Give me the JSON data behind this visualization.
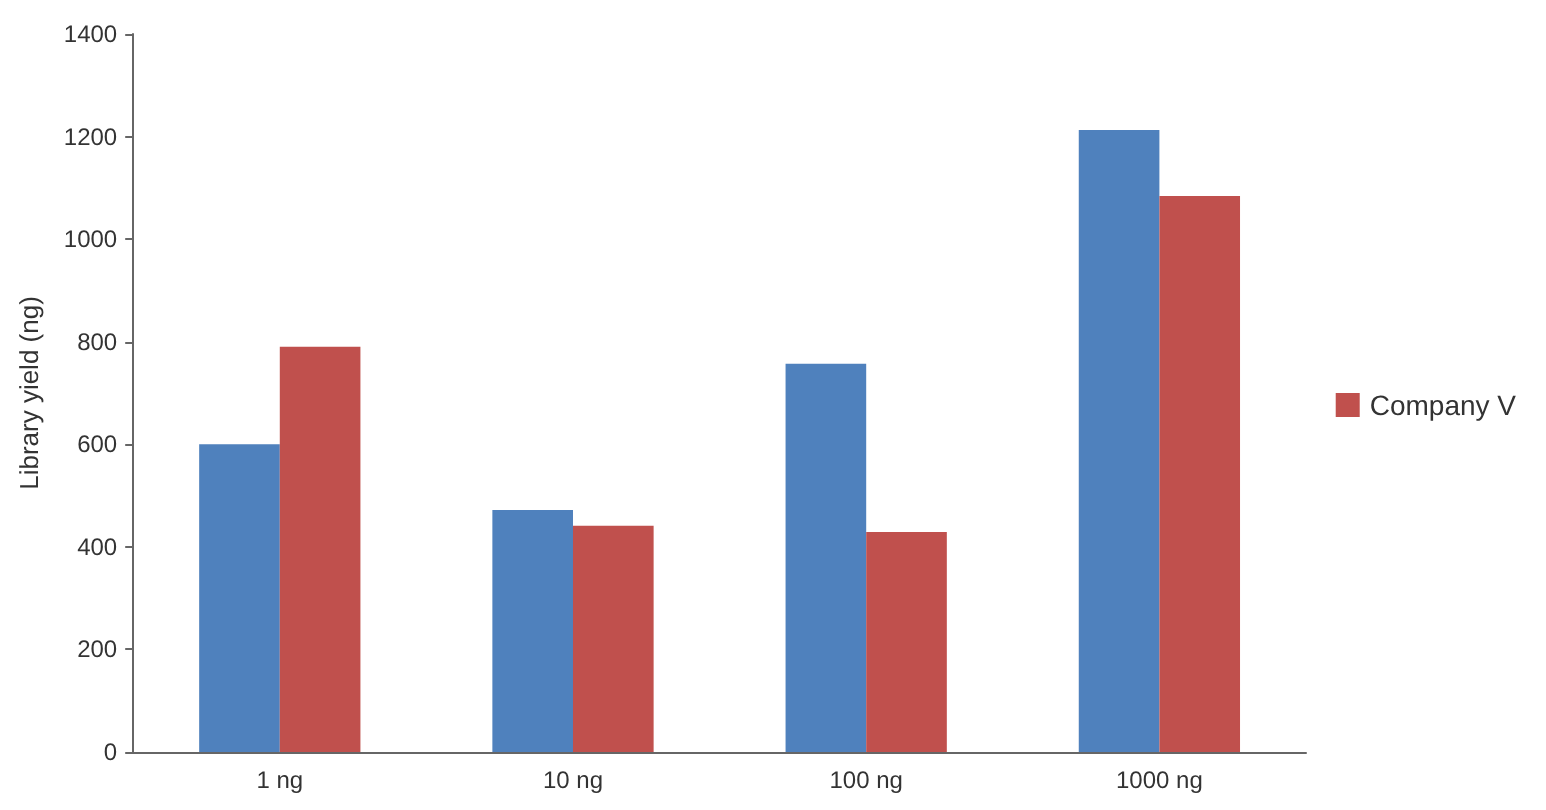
{
  "chart_data": {
    "type": "bar",
    "ylabel": "Library yield (ng)",
    "categories": [
      "1 ng",
      "10 ng",
      "100 ng",
      "1000 ng"
    ],
    "series": [
      {
        "color": "#4f81bd",
        "values": [
          600,
          472,
          757,
          1213
        ]
      },
      {
        "name": "Company V",
        "color": "#c0504d",
        "values": [
          790,
          441,
          429,
          1084
        ]
      }
    ],
    "ylim": [
      0,
      1400
    ],
    "yticks": [
      0,
      200,
      400,
      600,
      800,
      1000,
      1200,
      1400
    ],
    "grid": false,
    "legend": "right"
  }
}
